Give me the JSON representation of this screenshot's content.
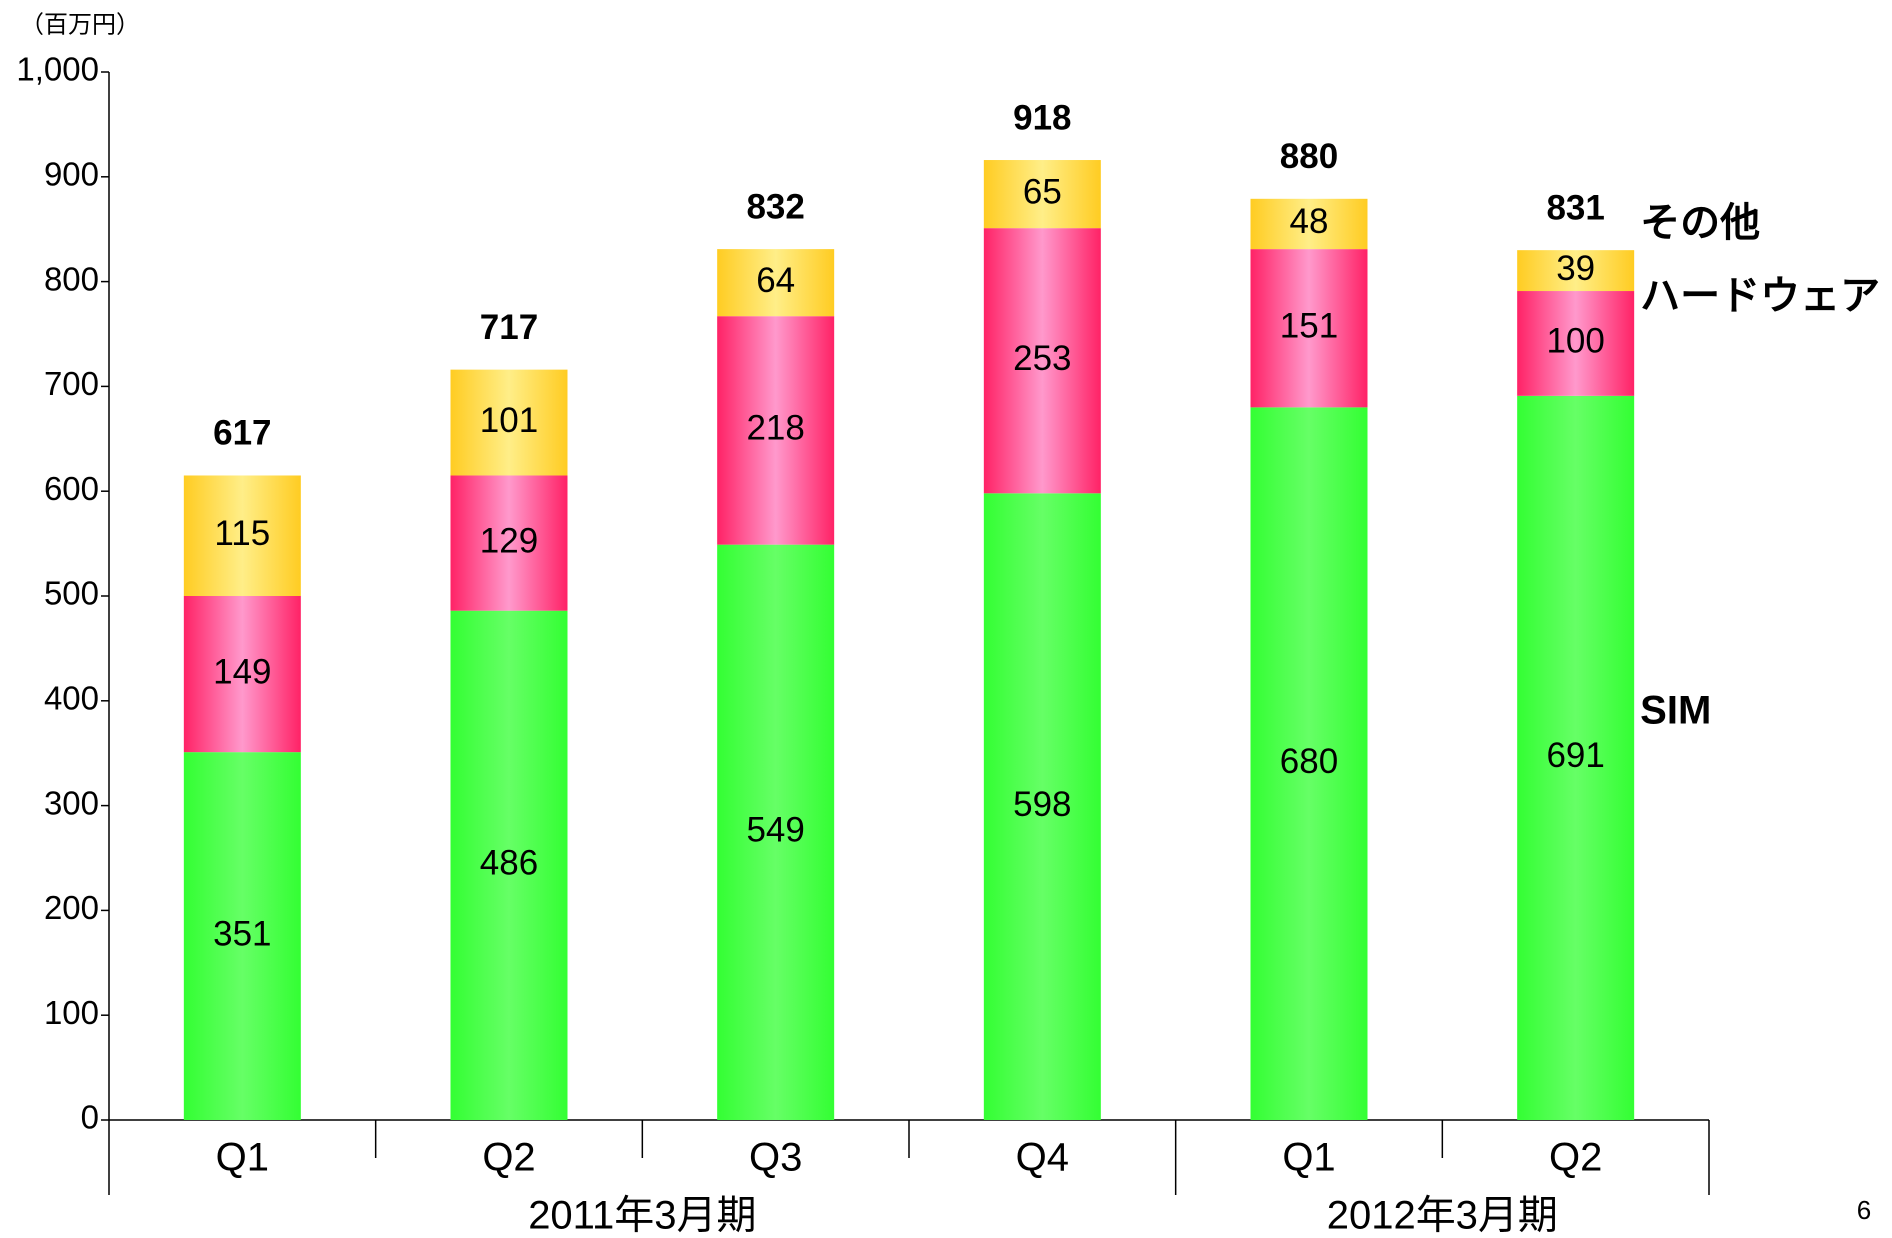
{
  "chart_data": {
    "type": "stacked-bar",
    "y_label": "（百万円）",
    "categories": [
      "Q1",
      "Q2",
      "Q3",
      "Q4",
      "Q1",
      "Q2"
    ],
    "groups": [
      "2011年3月期",
      "2012年3月期"
    ],
    "series": [
      {
        "name": "SIM",
        "color": "#44ff44",
        "values": [
          351,
          486,
          549,
          598,
          680,
          691
        ]
      },
      {
        "name": "ハードウェア",
        "color": "#ff3377",
        "values": [
          149,
          129,
          218,
          253,
          151,
          100
        ]
      },
      {
        "name": "その他",
        "color": "#ffcc33",
        "values": [
          115,
          101,
          64,
          65,
          48,
          39
        ]
      }
    ],
    "totals": [
      617,
      717,
      832,
      918,
      880,
      831
    ],
    "ylim": [
      0,
      1000
    ],
    "yticks": [
      0,
      100,
      200,
      300,
      400,
      500,
      600,
      700,
      800,
      900,
      {
        "value": 1000,
        "label": "1,000"
      }
    ]
  },
  "page_number": "6"
}
